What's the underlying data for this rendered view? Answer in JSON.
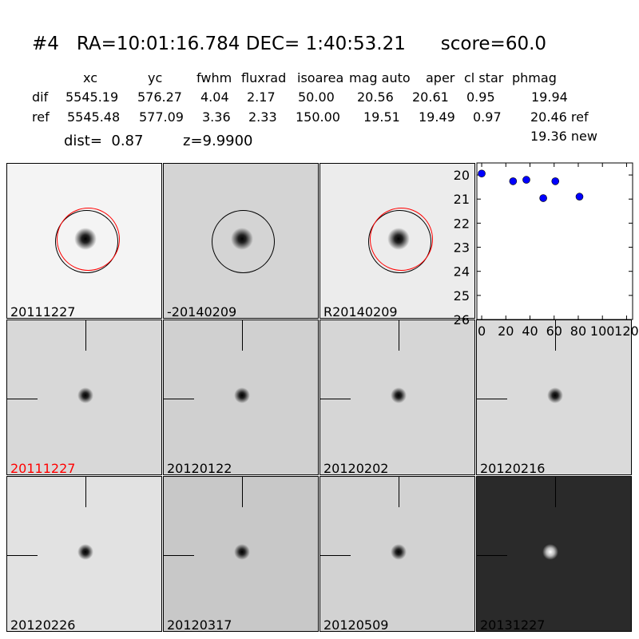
{
  "title": {
    "id": "#4",
    "ra": "RA=10:01:16.784",
    "dec": "DEC= 1:40:53.21",
    "score": "score=60.0"
  },
  "table": {
    "headers": [
      "xc",
      "yc",
      "fwhm",
      "fluxrad",
      "isoarea",
      "mag auto",
      "aper",
      "cl star",
      "phmag"
    ],
    "dif": {
      "label": "dif",
      "values": [
        "5545.19",
        "576.27",
        "4.04",
        "2.17",
        "50.00",
        "20.56",
        "20.61",
        "0.95",
        "19.94"
      ]
    },
    "ref": {
      "label": "ref",
      "values": [
        "5545.48",
        "577.09",
        "3.36",
        "2.33",
        "150.00",
        "19.51",
        "19.49",
        "0.97",
        "20.46 ref"
      ]
    },
    "new_phmag": "19.36 new",
    "dist": "dist=  0.87",
    "z": "z=9.9900"
  },
  "panels": [
    {
      "label": "20111227",
      "bg": "#f4f4f4",
      "circles": [
        "#000",
        "#f00"
      ]
    },
    {
      "label": "-20140209",
      "bg": "#d4d4d4",
      "circles": [
        "#000"
      ]
    },
    {
      "label": "R20140209",
      "bg": "#ececec",
      "circles": [
        "#000",
        "#f00"
      ]
    },
    {
      "label": "20111227",
      "bg": "#d8d8d8",
      "label_color": "#ff0000"
    },
    {
      "label": "20120122",
      "bg": "#d0d0d0"
    },
    {
      "label": "20120202",
      "bg": "#d6d6d6"
    },
    {
      "label": "20120216",
      "bg": "#dadada"
    },
    {
      "label": "20120226",
      "bg": "#e2e2e2"
    },
    {
      "label": "20120317",
      "bg": "#c8c8c8"
    },
    {
      "label": "20120509",
      "bg": "#d2d2d2"
    },
    {
      "label": "20131227",
      "bg": "#2a2a2a"
    }
  ],
  "chart_data": {
    "type": "scatter",
    "x": [
      0,
      26,
      37,
      51,
      61,
      81
    ],
    "y": [
      19.94,
      20.26,
      20.2,
      20.96,
      20.26,
      20.9
    ],
    "xlim": [
      -4,
      125
    ],
    "ylim": [
      26,
      19.5
    ],
    "y_inverted": true,
    "xticks": [
      "0",
      "20",
      "40",
      "60",
      "80",
      "100",
      "120"
    ],
    "yticks": [
      "20",
      "21",
      "22",
      "23",
      "24",
      "25",
      "26"
    ],
    "marker_color": "#0000ff"
  }
}
